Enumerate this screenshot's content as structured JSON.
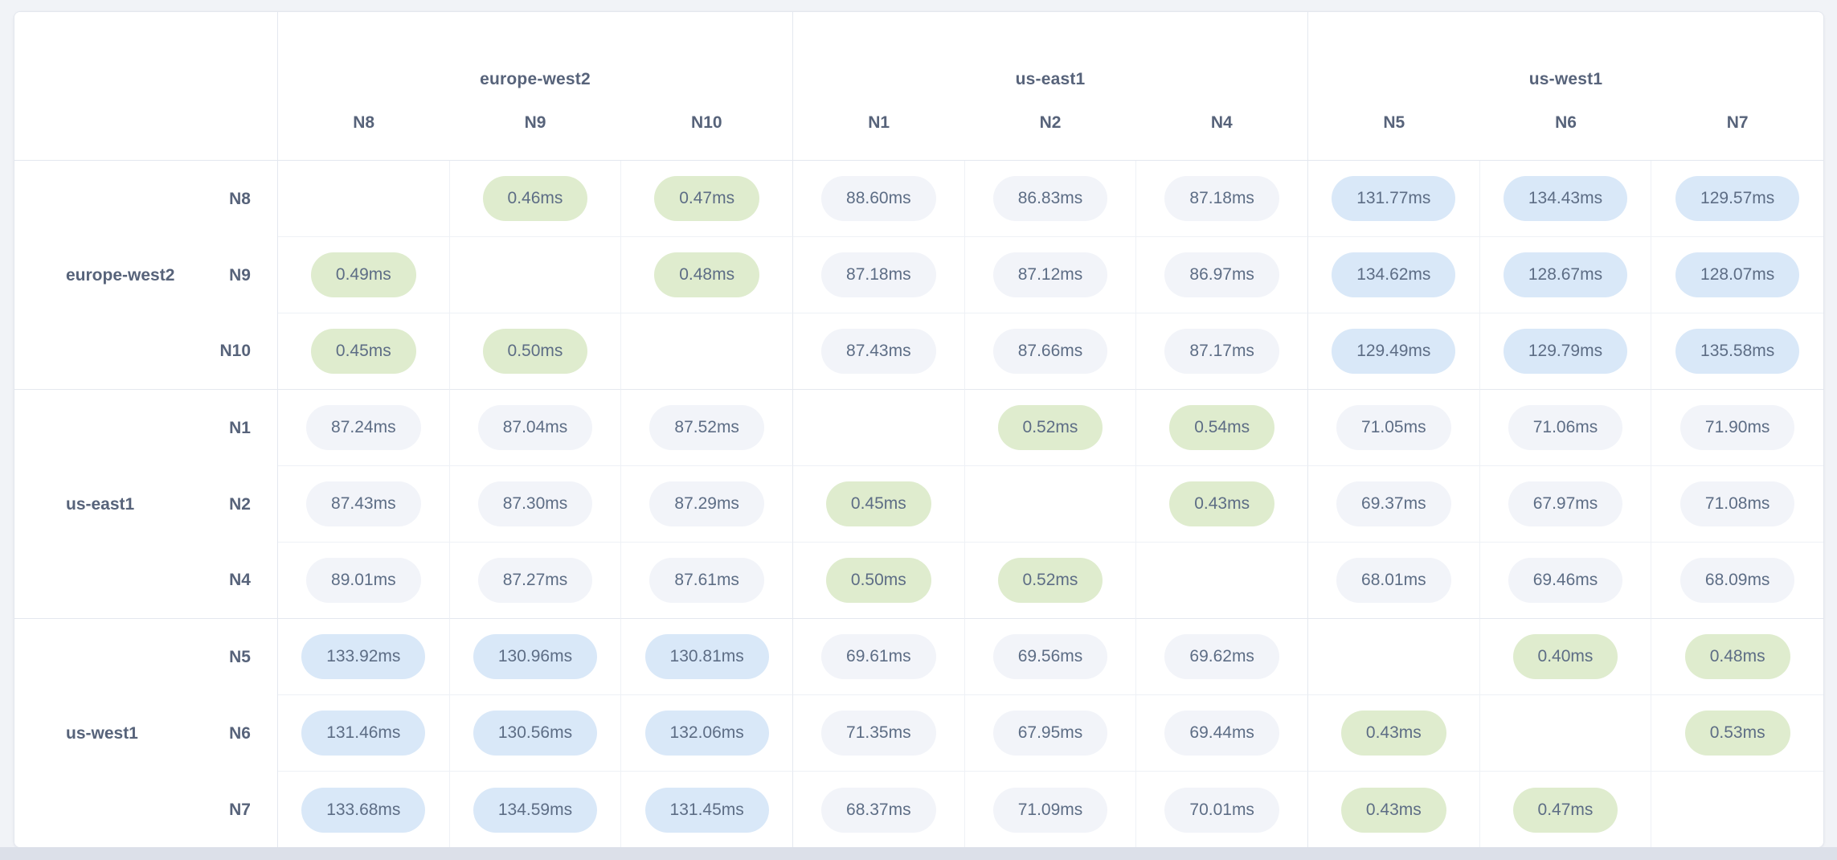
{
  "page": {
    "background_color": "#f1f3f7",
    "card_color": "#ffffff"
  },
  "matrix": {
    "unit": "ms",
    "tier_colors": {
      "low": "#dfecce",
      "mid": "#f2f4f9",
      "high": "#d9e8f8"
    },
    "column_groups": [
      {
        "region": "europe-west2",
        "nodes": [
          "N8",
          "N9",
          "N10"
        ]
      },
      {
        "region": "us-east1",
        "nodes": [
          "N1",
          "N2",
          "N4"
        ]
      },
      {
        "region": "us-west1",
        "nodes": [
          "N5",
          "N6",
          "N7"
        ]
      }
    ],
    "row_groups": [
      {
        "region": "europe-west2",
        "rows": [
          {
            "node": "N8",
            "cells": [
              null,
              {
                "value": "0.46ms",
                "tier": "low"
              },
              {
                "value": "0.47ms",
                "tier": "low"
              },
              {
                "value": "88.60ms",
                "tier": "mid"
              },
              {
                "value": "86.83ms",
                "tier": "mid"
              },
              {
                "value": "87.18ms",
                "tier": "mid"
              },
              {
                "value": "131.77ms",
                "tier": "high"
              },
              {
                "value": "134.43ms",
                "tier": "high"
              },
              {
                "value": "129.57ms",
                "tier": "high"
              }
            ]
          },
          {
            "node": "N9",
            "cells": [
              {
                "value": "0.49ms",
                "tier": "low"
              },
              null,
              {
                "value": "0.48ms",
                "tier": "low"
              },
              {
                "value": "87.18ms",
                "tier": "mid"
              },
              {
                "value": "87.12ms",
                "tier": "mid"
              },
              {
                "value": "86.97ms",
                "tier": "mid"
              },
              {
                "value": "134.62ms",
                "tier": "high"
              },
              {
                "value": "128.67ms",
                "tier": "high"
              },
              {
                "value": "128.07ms",
                "tier": "high"
              }
            ]
          },
          {
            "node": "N10",
            "cells": [
              {
                "value": "0.45ms",
                "tier": "low"
              },
              {
                "value": "0.50ms",
                "tier": "low"
              },
              null,
              {
                "value": "87.43ms",
                "tier": "mid"
              },
              {
                "value": "87.66ms",
                "tier": "mid"
              },
              {
                "value": "87.17ms",
                "tier": "mid"
              },
              {
                "value": "129.49ms",
                "tier": "high"
              },
              {
                "value": "129.79ms",
                "tier": "high"
              },
              {
                "value": "135.58ms",
                "tier": "high"
              }
            ]
          }
        ]
      },
      {
        "region": "us-east1",
        "rows": [
          {
            "node": "N1",
            "cells": [
              {
                "value": "87.24ms",
                "tier": "mid"
              },
              {
                "value": "87.04ms",
                "tier": "mid"
              },
              {
                "value": "87.52ms",
                "tier": "mid"
              },
              null,
              {
                "value": "0.52ms",
                "tier": "low"
              },
              {
                "value": "0.54ms",
                "tier": "low"
              },
              {
                "value": "71.05ms",
                "tier": "mid"
              },
              {
                "value": "71.06ms",
                "tier": "mid"
              },
              {
                "value": "71.90ms",
                "tier": "mid"
              }
            ]
          },
          {
            "node": "N2",
            "cells": [
              {
                "value": "87.43ms",
                "tier": "mid"
              },
              {
                "value": "87.30ms",
                "tier": "mid"
              },
              {
                "value": "87.29ms",
                "tier": "mid"
              },
              {
                "value": "0.45ms",
                "tier": "low"
              },
              null,
              {
                "value": "0.43ms",
                "tier": "low"
              },
              {
                "value": "69.37ms",
                "tier": "mid"
              },
              {
                "value": "67.97ms",
                "tier": "mid"
              },
              {
                "value": "71.08ms",
                "tier": "mid"
              }
            ]
          },
          {
            "node": "N4",
            "cells": [
              {
                "value": "89.01ms",
                "tier": "mid"
              },
              {
                "value": "87.27ms",
                "tier": "mid"
              },
              {
                "value": "87.61ms",
                "tier": "mid"
              },
              {
                "value": "0.50ms",
                "tier": "low"
              },
              {
                "value": "0.52ms",
                "tier": "low"
              },
              null,
              {
                "value": "68.01ms",
                "tier": "mid"
              },
              {
                "value": "69.46ms",
                "tier": "mid"
              },
              {
                "value": "68.09ms",
                "tier": "mid"
              }
            ]
          }
        ]
      },
      {
        "region": "us-west1",
        "rows": [
          {
            "node": "N5",
            "cells": [
              {
                "value": "133.92ms",
                "tier": "high"
              },
              {
                "value": "130.96ms",
                "tier": "high"
              },
              {
                "value": "130.81ms",
                "tier": "high"
              },
              {
                "value": "69.61ms",
                "tier": "mid"
              },
              {
                "value": "69.56ms",
                "tier": "mid"
              },
              {
                "value": "69.62ms",
                "tier": "mid"
              },
              null,
              {
                "value": "0.40ms",
                "tier": "low"
              },
              {
                "value": "0.48ms",
                "tier": "low"
              }
            ]
          },
          {
            "node": "N6",
            "cells": [
              {
                "value": "131.46ms",
                "tier": "high"
              },
              {
                "value": "130.56ms",
                "tier": "high"
              },
              {
                "value": "132.06ms",
                "tier": "high"
              },
              {
                "value": "71.35ms",
                "tier": "mid"
              },
              {
                "value": "67.95ms",
                "tier": "mid"
              },
              {
                "value": "69.44ms",
                "tier": "mid"
              },
              {
                "value": "0.43ms",
                "tier": "low"
              },
              null,
              {
                "value": "0.53ms",
                "tier": "low"
              }
            ]
          },
          {
            "node": "N7",
            "cells": [
              {
                "value": "133.68ms",
                "tier": "high"
              },
              {
                "value": "134.59ms",
                "tier": "high"
              },
              {
                "value": "131.45ms",
                "tier": "high"
              },
              {
                "value": "68.37ms",
                "tier": "mid"
              },
              {
                "value": "71.09ms",
                "tier": "mid"
              },
              {
                "value": "70.01ms",
                "tier": "mid"
              },
              {
                "value": "0.43ms",
                "tier": "low"
              },
              {
                "value": "0.47ms",
                "tier": "low"
              },
              null
            ]
          }
        ]
      }
    ]
  }
}
